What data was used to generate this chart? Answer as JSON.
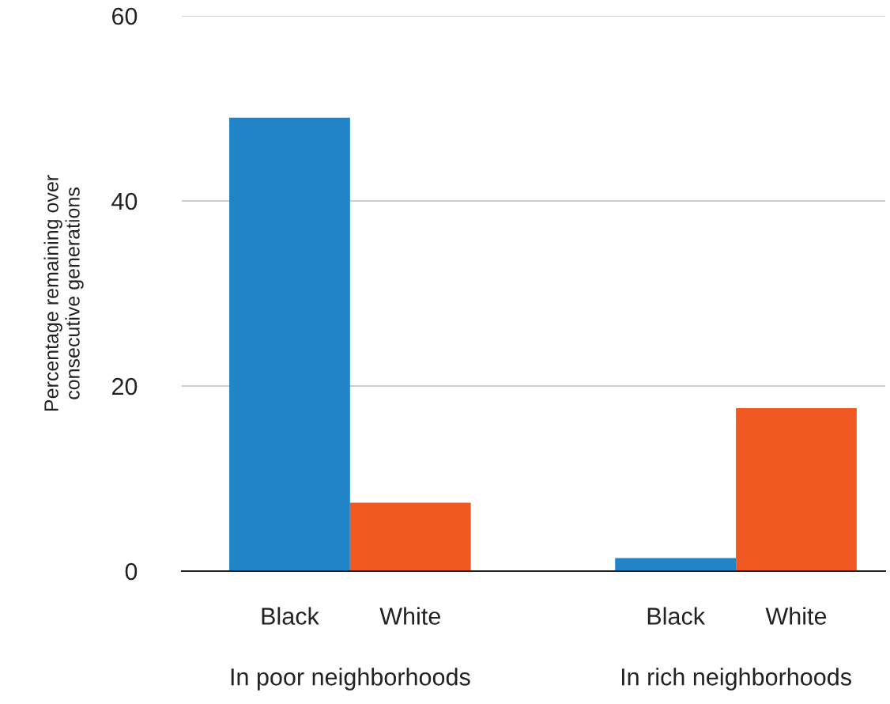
{
  "chart_data": {
    "type": "bar",
    "ylabel": "Percentage remaining over\nconsecutive generations",
    "categories": [
      "In poor neighborhoods",
      "In rich neighborhoods"
    ],
    "series": [
      {
        "name": "Black",
        "color": "#2183c8",
        "values": [
          49,
          1.4
        ]
      },
      {
        "name": "White",
        "color": "#f05a22",
        "values": [
          7.4,
          17.6
        ]
      }
    ],
    "ylim": [
      0,
      60
    ],
    "yticks": [
      0,
      20,
      40,
      60
    ],
    "grid": "y",
    "legend": false
  }
}
